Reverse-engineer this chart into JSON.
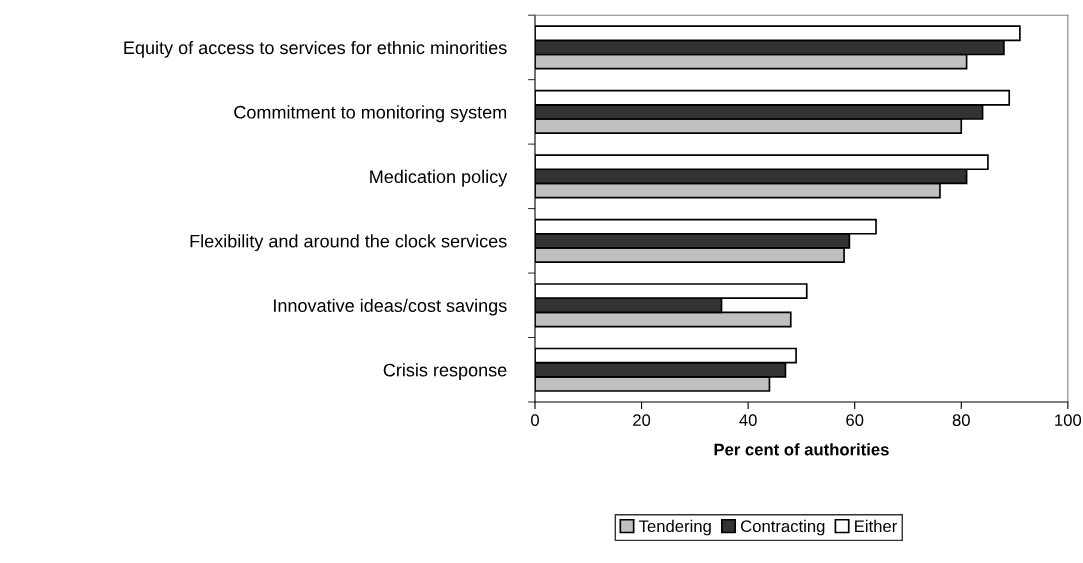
{
  "chart_data": {
    "type": "bar",
    "orientation": "horizontal",
    "xlabel": "Per cent of authorities",
    "categories": [
      "Equity of access to services for ethnic minorities",
      "Commitment to monitoring system",
      "Medication policy",
      "Flexibility and around the clock services",
      "Innovative ideas/cost savings",
      "Crisis response"
    ],
    "series": [
      {
        "name": "Tendering",
        "color": "#c0c0c0",
        "values": [
          81,
          80,
          76,
          58,
          48,
          44
        ]
      },
      {
        "name": "Contracting",
        "color": "#333333",
        "values": [
          88,
          84,
          81,
          59,
          35,
          47
        ]
      },
      {
        "name": "Either",
        "color": "#ffffff",
        "values": [
          91,
          89,
          85,
          64,
          51,
          49
        ]
      }
    ],
    "xlim": [
      0,
      100
    ],
    "xticks": [
      0,
      20,
      40,
      60,
      80,
      100
    ],
    "grid": false,
    "legend": "bottom"
  }
}
